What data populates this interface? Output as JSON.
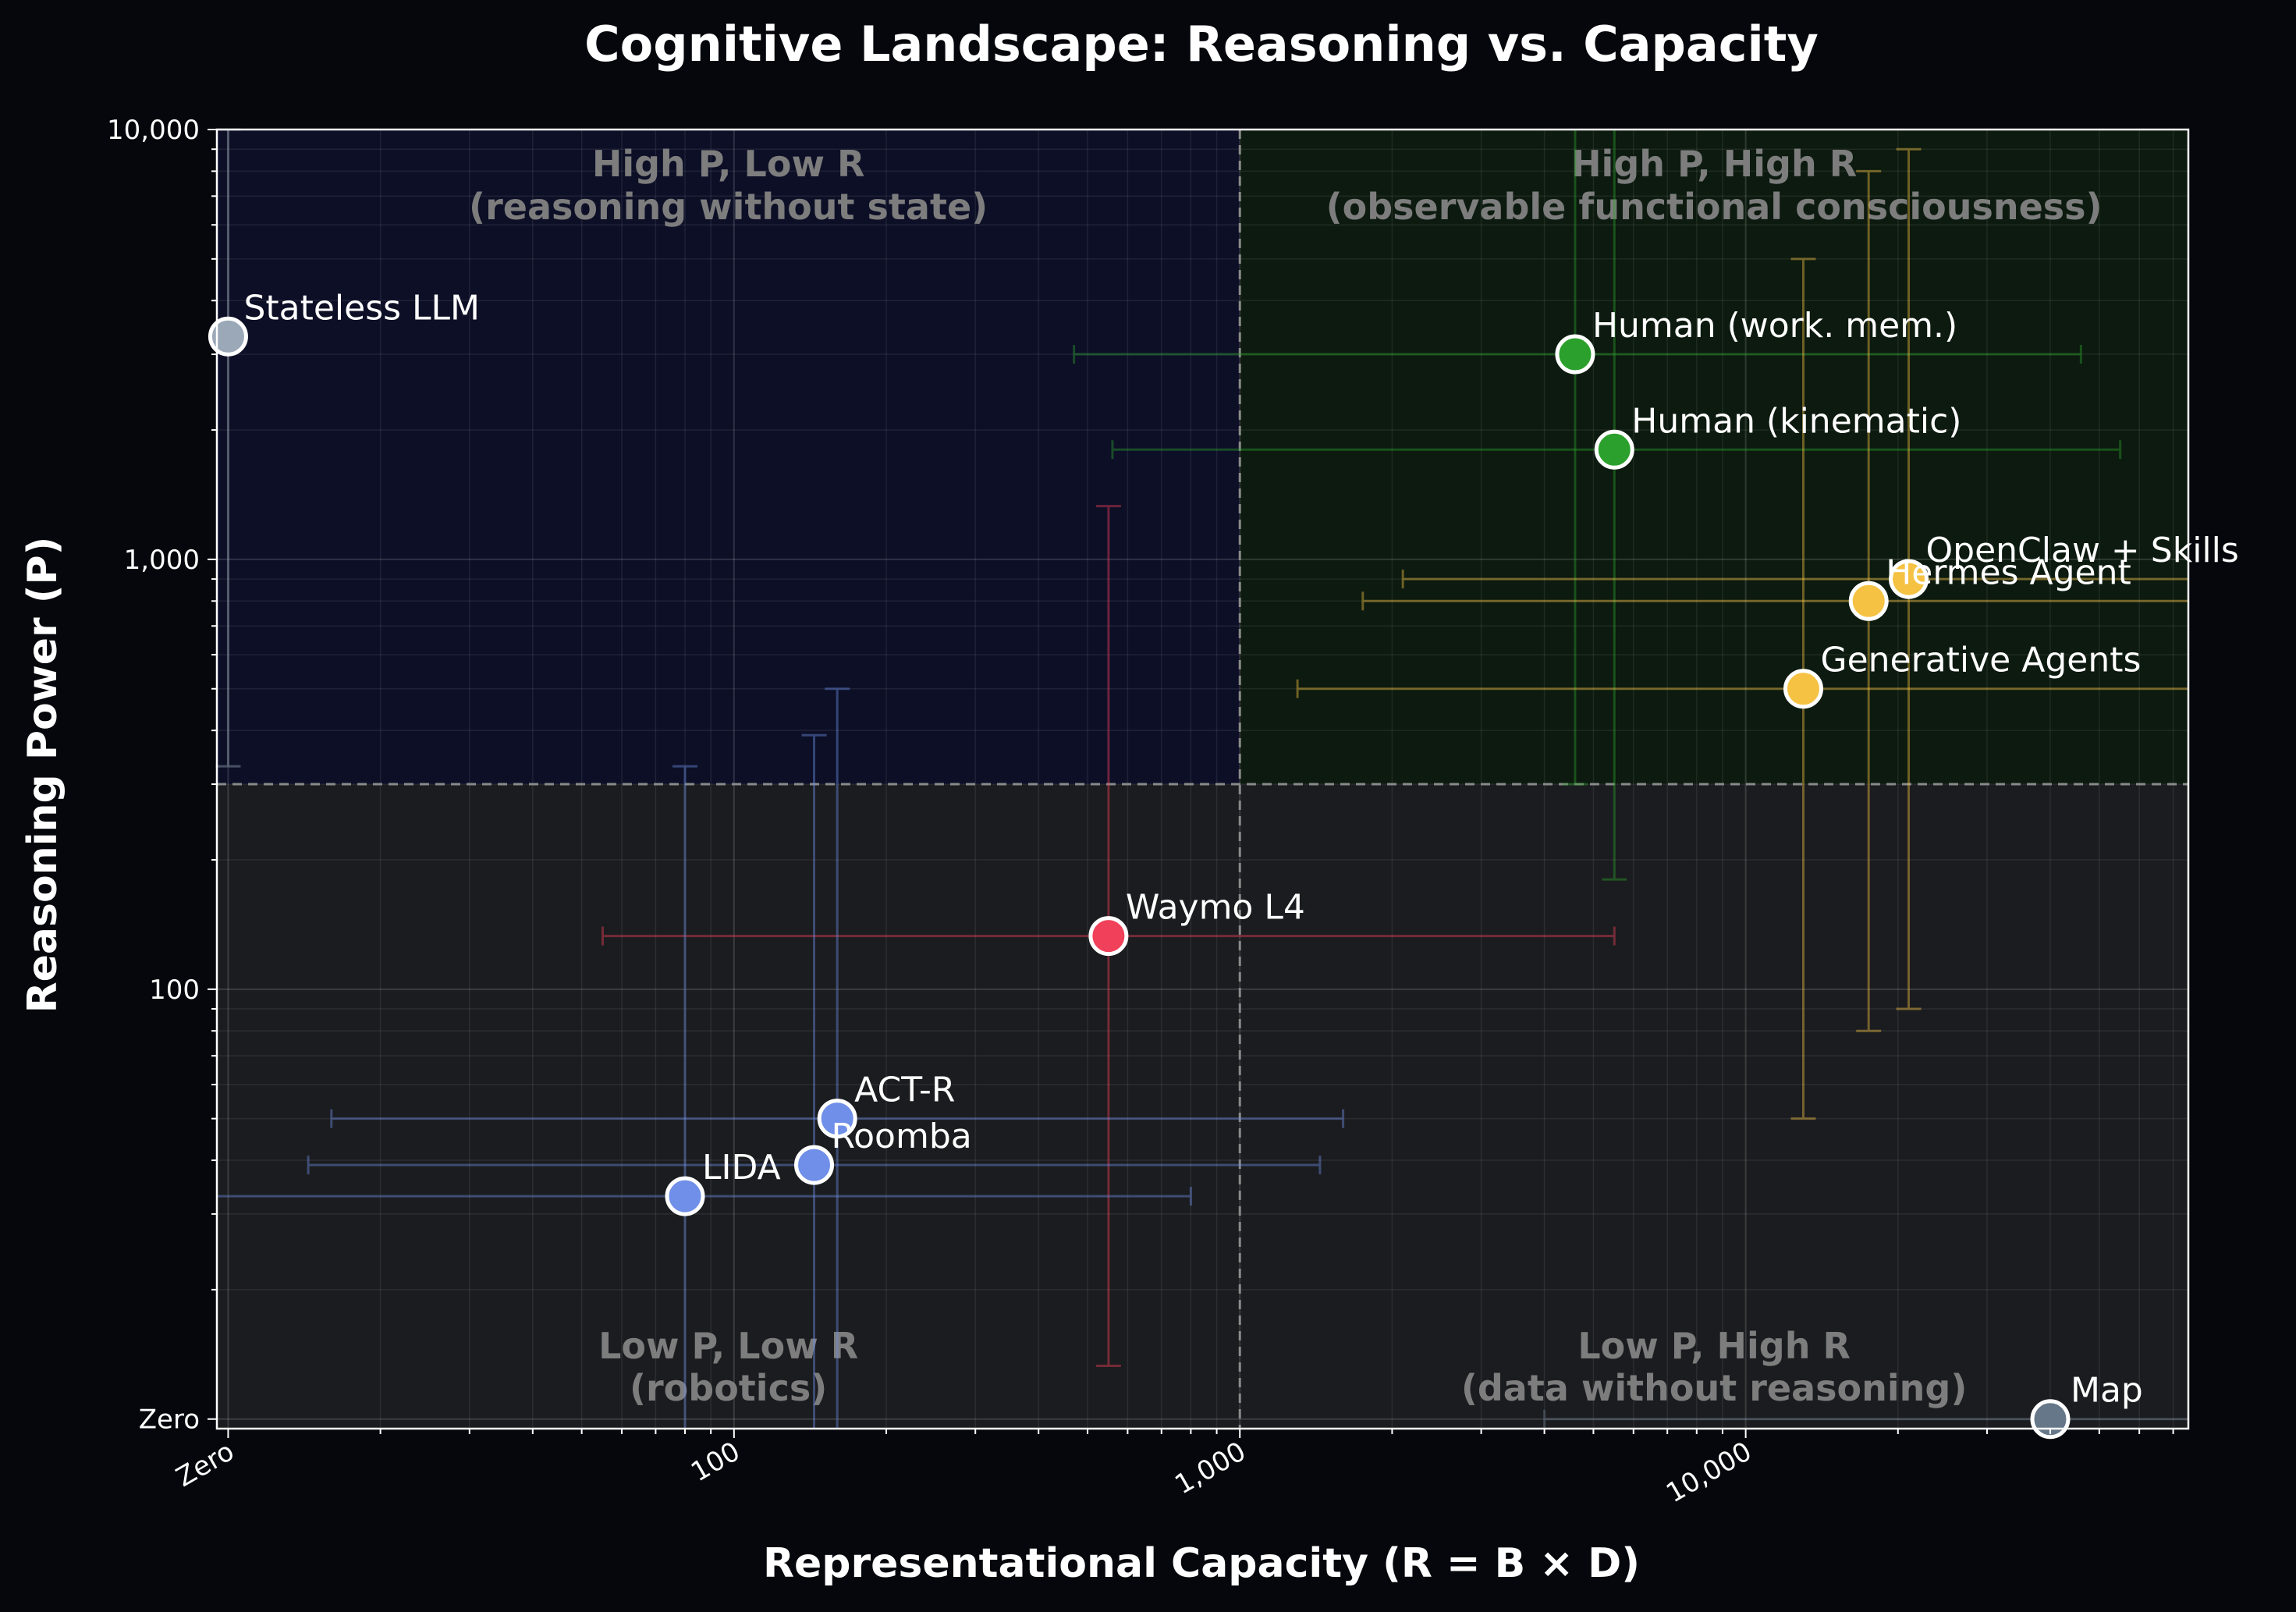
{
  "chart_data": {
    "type": "scatter",
    "title": "Cognitive Landscape: Reasoning vs. Capacity",
    "xlabel": "Representational Capacity (R = B × D)",
    "ylabel": "Reasoning Power (P)",
    "x_scale": "log",
    "y_scale": "log",
    "xlim": [
      9.5,
      75000
    ],
    "ylim": [
      9.5,
      10000
    ],
    "x_ticks": [
      {
        "value": 10,
        "label": "Zero"
      },
      {
        "value": 100,
        "label": "100"
      },
      {
        "value": 1000,
        "label": "1,000"
      },
      {
        "value": 10000,
        "label": "10,000"
      }
    ],
    "y_ticks": [
      {
        "value": 10,
        "label": "Zero"
      },
      {
        "value": 100,
        "label": "100"
      },
      {
        "value": 1000,
        "label": "1,000"
      },
      {
        "value": 10000,
        "label": "10,000"
      }
    ],
    "grid": true,
    "thresholds": {
      "x": 1000,
      "y": 300
    },
    "quadrants": [
      {
        "id": "hp-lr",
        "line1": "High P, Low R",
        "line2": "(reasoning without state)",
        "fill": "#0c0f26"
      },
      {
        "id": "hp-hr",
        "line1": "High P, High R",
        "line2": "(observable functional consciousness)",
        "fill": "#0c1a0f"
      },
      {
        "id": "lp-lr",
        "line1": "Low P, Low R",
        "line2": "(robotics)",
        "fill": "#1b1c1f"
      },
      {
        "id": "lp-hr",
        "line1": "Low P, High R",
        "line2": "(data without reasoning)",
        "fill": "#1b1c1f"
      }
    ],
    "points": [
      {
        "name": "Stateless LLM",
        "x": 10,
        "y": 3300,
        "x_err": null,
        "y_err": [
          330,
          10000
        ],
        "color": "#9aa8b8"
      },
      {
        "name": "Human (work. mem.)",
        "x": 4600,
        "y": 3000,
        "x_err": [
          470,
          46000
        ],
        "y_err": [
          300,
          30000
        ],
        "color": "#2ca02c"
      },
      {
        "name": "Human (kinematic)",
        "x": 5500,
        "y": 1800,
        "x_err": [
          560,
          55000
        ],
        "y_err": [
          180,
          18000
        ],
        "color": "#2ca02c"
      },
      {
        "name": "OpenClaw + Skills",
        "x": 21000,
        "y": 900,
        "x_err": [
          2100,
          210000
        ],
        "y_err": [
          90,
          9000
        ],
        "color": "#f5c243"
      },
      {
        "name": "Hermes Agent",
        "x": 17500,
        "y": 800,
        "x_err": [
          1750,
          175000
        ],
        "y_err": [
          80,
          8000
        ],
        "color": "#f5c243"
      },
      {
        "name": "Generative Agents",
        "x": 13000,
        "y": 500,
        "x_err": [
          1300,
          130000
        ],
        "y_err": [
          50,
          5000
        ],
        "color": "#f5c243"
      },
      {
        "name": "Waymo L4",
        "x": 550,
        "y": 133,
        "x_err": [
          55,
          5500
        ],
        "y_err": [
          13.3,
          1330
        ],
        "color": "#f0405a"
      },
      {
        "name": "ACT-R",
        "x": 160,
        "y": 50,
        "x_err": [
          16,
          1600
        ],
        "y_err": [
          5,
          500
        ],
        "color": "#6f8fe8"
      },
      {
        "name": "Roomba",
        "x": 144,
        "y": 39,
        "x_err": [
          14.4,
          1440
        ],
        "y_err": [
          3.9,
          390
        ],
        "color": "#6f8fe8"
      },
      {
        "name": "LIDA",
        "x": 80,
        "y": 33,
        "x_err": [
          8,
          800
        ],
        "y_err": [
          3.3,
          330
        ],
        "color": "#6f8fe8"
      },
      {
        "name": "Map",
        "x": 40000,
        "y": 10,
        "x_err": [
          4000,
          400000
        ],
        "y_err": null,
        "color": "#67778a"
      }
    ]
  }
}
